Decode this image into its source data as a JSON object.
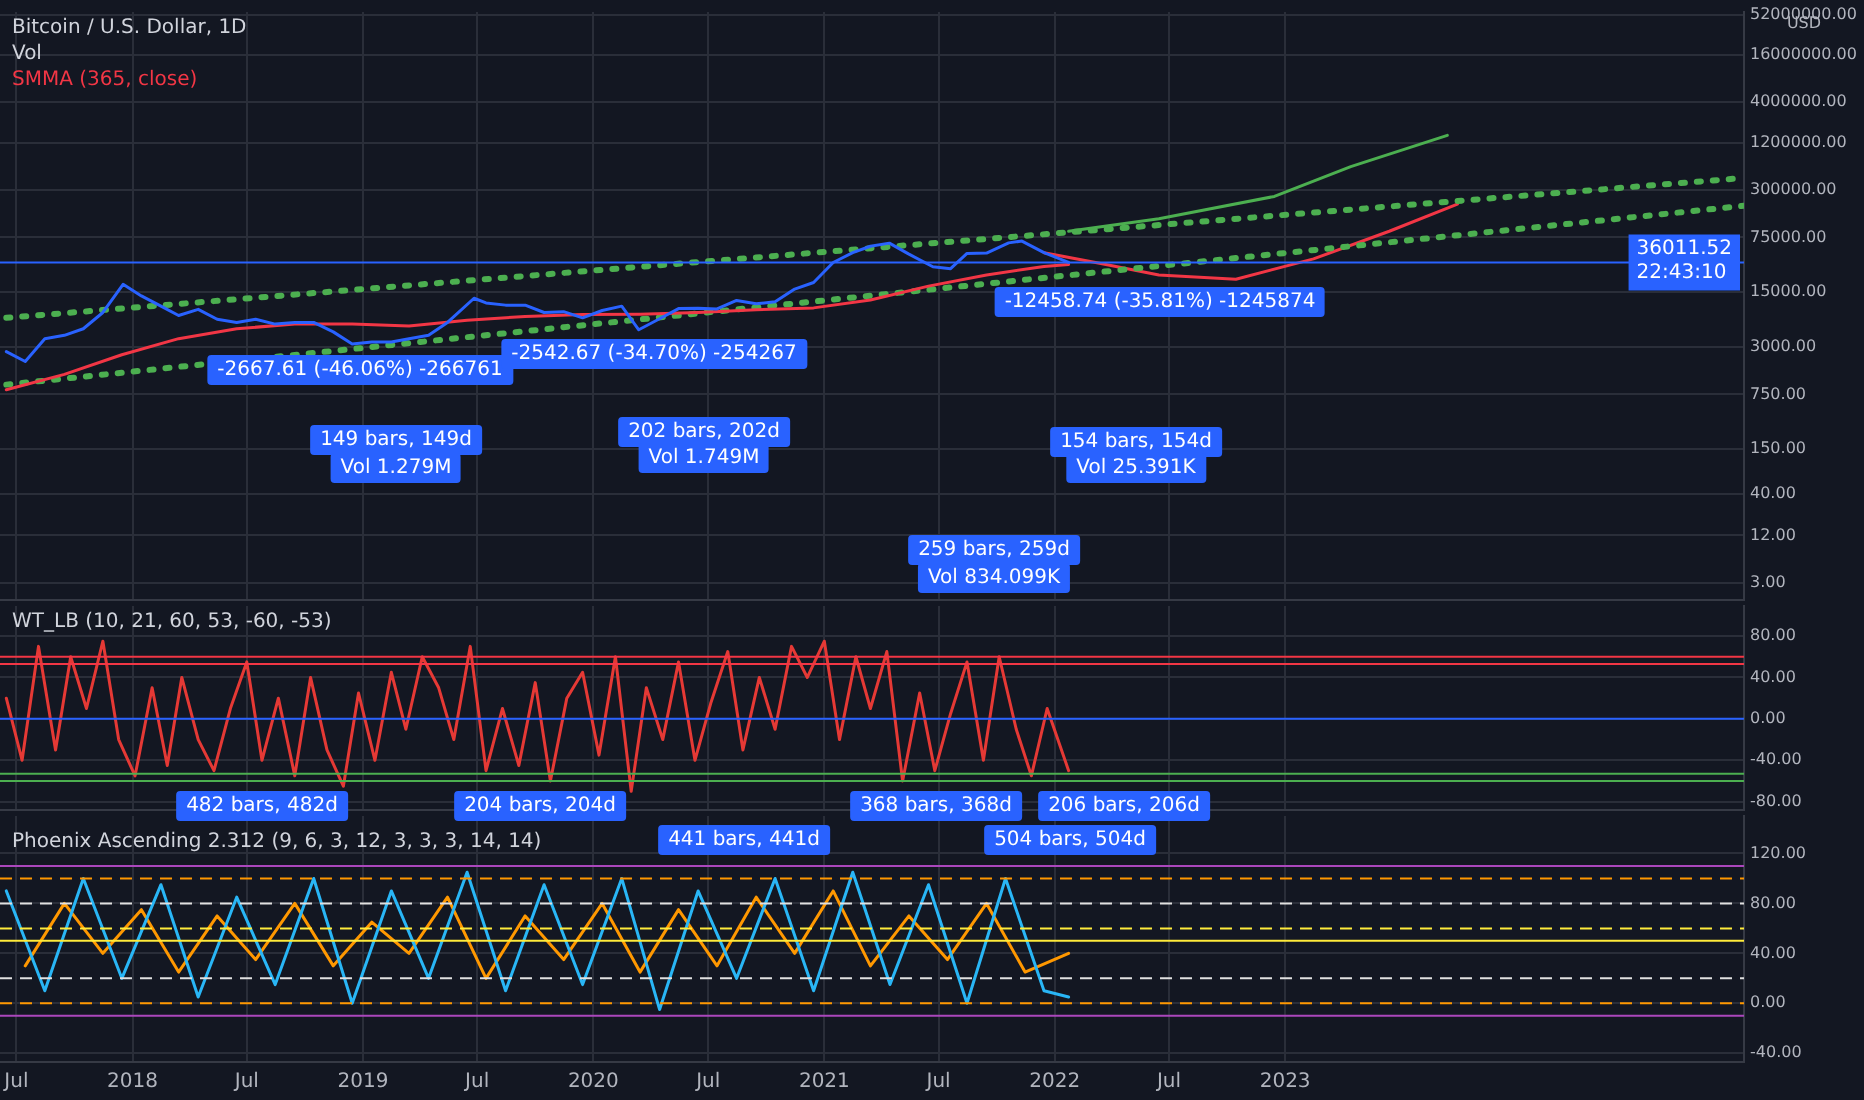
{
  "chart_data": [
    {
      "type": "line",
      "title": "Bitcoin / U.S. Dollar, 1D",
      "subtitle": "Vol",
      "ylabel": "USD",
      "log": true,
      "grid": true,
      "legend": false,
      "marker": "none",
      "tick_labels": "y",
      "xlim": [
        "2017-06-05",
        "2024-12-28"
      ],
      "xticks": [
        {
          "value": "2017-07-01",
          "label": null
        },
        {
          "value": "2018-01-01",
          "label": null
        },
        {
          "value": "2018-07-01",
          "label": null
        },
        {
          "value": "2019-01-01",
          "label": null
        },
        {
          "value": "2019-07-01",
          "label": null
        },
        {
          "value": "2020-01-01",
          "label": null
        },
        {
          "value": "2020-07-01",
          "label": null
        },
        {
          "value": "2021-01-01",
          "label": null
        },
        {
          "value": "2021-07-01",
          "label": null
        },
        {
          "value": "2022-01-01",
          "label": null
        },
        {
          "value": "2022-07-01",
          "label": null
        },
        {
          "value": "2023-01-01",
          "label": null
        }
      ],
      "ylim": [
        1.8,
        56000000
      ],
      "yticks": [
        {
          "value": 3,
          "label": "3.00"
        },
        {
          "value": 12,
          "label": "12.00"
        },
        {
          "value": 40,
          "label": "40.00"
        },
        {
          "value": 150,
          "label": "150.00"
        },
        {
          "value": 750,
          "label": "750.00"
        },
        {
          "value": 3000,
          "label": "3000.00"
        },
        {
          "value": 15000,
          "label": "15000.00"
        },
        {
          "value": 75000,
          "label": "75000.00"
        },
        {
          "value": 300000,
          "label": "300000.00"
        },
        {
          "value": 1200000,
          "label": "1200000.00"
        },
        {
          "value": 4000000,
          "label": "4000000.00"
        },
        {
          "value": 16000000,
          "label": "16000000.00"
        },
        {
          "value": 52000000,
          "label": "52000000.00"
        }
      ],
      "series": [
        {
          "color": "#2962ff",
          "x": [
            "2017-06-15",
            "2017-07-15",
            "2017-08-15",
            "2017-09-15",
            "2017-10-15",
            "2017-11-15",
            "2017-12-17",
            "2018-01-15",
            "2018-02-15",
            "2018-03-15",
            "2018-04-15",
            "2018-05-15",
            "2018-06-15",
            "2018-07-15",
            "2018-08-15",
            "2018-09-15",
            "2018-10-15",
            "2018-11-15",
            "2018-12-15",
            "2019-01-15",
            "2019-02-15",
            "2019-03-15",
            "2019-04-15",
            "2019-05-15",
            "2019-06-26",
            "2019-07-15",
            "2019-08-15",
            "2019-09-15",
            "2019-10-15",
            "2019-11-15",
            "2019-12-15",
            "2020-01-15",
            "2020-02-15",
            "2020-03-13",
            "2020-04-15",
            "2020-05-15",
            "2020-06-15",
            "2020-07-15",
            "2020-08-15",
            "2020-09-15",
            "2020-10-15",
            "2020-11-15",
            "2020-12-15",
            "2021-01-15",
            "2021-02-15",
            "2021-03-15",
            "2021-04-14",
            "2021-05-15",
            "2021-06-22",
            "2021-07-20",
            "2021-08-15",
            "2021-09-15",
            "2021-10-20",
            "2021-11-10",
            "2021-12-15",
            "2022-01-23"
          ],
          "values": [
            2630,
            1970,
            3850,
            4250,
            5150,
            8300,
            19000,
            13500,
            10000,
            7600,
            9100,
            6800,
            6200,
            6800,
            5900,
            6200,
            6200,
            4700,
            3300,
            3500,
            3500,
            3850,
            4250,
            6200,
            12600,
            11000,
            10300,
            10300,
            8300,
            8500,
            7100,
            8800,
            10000,
            5000,
            6900,
            9300,
            9400,
            9200,
            11800,
            10700,
            11400,
            16500,
            20000,
            36000,
            48000,
            58000,
            63500,
            46000,
            31800,
            30000,
            47000,
            47500,
            64000,
            67500,
            48000,
            36011.52
          ]
        },
        {
          "name": "SMMA (365, close)",
          "color": "#f23645",
          "x": [
            "2017-06-15",
            "2017-09-15",
            "2017-12-15",
            "2018-03-15",
            "2018-06-15",
            "2018-09-15",
            "2018-12-15",
            "2019-03-15",
            "2019-06-15",
            "2019-09-15",
            "2019-12-15",
            "2020-03-15",
            "2020-06-15",
            "2020-09-15",
            "2020-12-15",
            "2021-03-15",
            "2021-06-15",
            "2021-09-15",
            "2021-12-15",
            "2022-01-23"
          ],
          "values": [
            860,
            1350,
            2400,
            3850,
            5150,
            5900,
            5900,
            5600,
            6600,
            7400,
            7800,
            7900,
            8300,
            9000,
            9500,
            12000,
            18000,
            25000,
            32000,
            34000
          ]
        },
        {
          "color": "#4caf50",
          "line_style": "dotted",
          "x": [
            "2017-06-15",
            "2024-12-28"
          ],
          "values": [
            7100,
            430000
          ]
        },
        {
          "color": "#4caf50",
          "line_style": "dotted",
          "x": [
            "2017-06-15",
            "2024-12-28"
          ],
          "values": [
            1000,
            190000
          ]
        },
        {
          "color": "#4caf50",
          "x": [
            "2022-01-23",
            "2022-06-15",
            "2022-12-15",
            "2023-04-15",
            "2023-09-15"
          ],
          "values": [
            90000,
            130000,
            250000,
            600000,
            1500000
          ]
        },
        {
          "color": "#f23645",
          "x": [
            "2021-12-15",
            "2022-03-15",
            "2022-06-15",
            "2022-10-15",
            "2023-02-15",
            "2023-06-15",
            "2023-10-01"
          ],
          "values": [
            48000,
            35000,
            25000,
            22000,
            40000,
            90000,
            200000
          ]
        }
      ],
      "ref_lines": [
        {
          "axis": "y",
          "value": 36011.52,
          "label": "36011.52\n22:43:10",
          "color": "#2962ff"
        }
      ],
      "annotations": [
        "-2667.61 (-46.06%) -266761",
        "149 bars, 149d",
        "Vol 1.279M",
        "-2542.67 (-34.70%) -254267",
        "202 bars, 202d",
        "Vol 1.749M",
        "-12458.74 (-35.81%) -1245874",
        "154 bars, 154d",
        "Vol 25.391K",
        "259 bars, 259d",
        "Vol 834.099K"
      ]
    },
    {
      "type": "line",
      "title": "WT_LB (10, 21, 60, 53, -60, -53)",
      "grid": true,
      "legend": false,
      "marker": "none",
      "tick_labels": "y",
      "xlim": [
        "2017-06-05",
        "2024-12-28"
      ],
      "xticks": [
        {
          "value": "2017-07-01",
          "label": null
        },
        {
          "value": "2018-01-01",
          "label": null
        },
        {
          "value": "2018-07-01",
          "label": null
        },
        {
          "value": "2019-01-01",
          "label": null
        },
        {
          "value": "2019-07-01",
          "label": null
        },
        {
          "value": "2020-01-01",
          "label": null
        },
        {
          "value": "2020-07-01",
          "label": null
        },
        {
          "value": "2021-01-01",
          "label": null
        },
        {
          "value": "2021-07-01",
          "label": null
        },
        {
          "value": "2022-01-01",
          "label": null
        },
        {
          "value": "2022-07-01",
          "label": null
        },
        {
          "value": "2023-01-01",
          "label": null
        }
      ],
      "ylim": [
        -88,
        109
      ],
      "yticks": [
        {
          "value": -80,
          "label": "-80.00"
        },
        {
          "value": -40,
          "label": "-40.00"
        },
        {
          "value": 0,
          "label": "0.00"
        },
        {
          "value": 40,
          "label": "40.00"
        },
        {
          "value": 80,
          "label": "80.00"
        }
      ],
      "series": [
        {
          "color": "#e53935",
          "x": [
            "2017-06-15",
            "2017-07-10",
            "2017-08-05",
            "2017-09-01",
            "2017-09-25",
            "2017-10-20",
            "2017-11-15",
            "2017-12-10",
            "2018-01-05",
            "2018-02-01",
            "2018-02-25",
            "2018-03-20",
            "2018-04-15",
            "2018-05-10",
            "2018-06-05",
            "2018-07-01",
            "2018-07-25",
            "2018-08-20",
            "2018-09-15",
            "2018-10-10",
            "2018-11-05",
            "2018-12-01",
            "2018-12-25",
            "2019-01-20",
            "2019-02-15",
            "2019-03-10",
            "2019-04-05",
            "2019-05-01",
            "2019-05-25",
            "2019-06-20",
            "2019-07-15",
            "2019-08-10",
            "2019-09-05",
            "2019-10-01",
            "2019-10-25",
            "2019-11-20",
            "2019-12-15",
            "2020-01-10",
            "2020-02-05",
            "2020-03-01",
            "2020-03-25",
            "2020-04-20",
            "2020-05-15",
            "2020-06-10",
            "2020-07-05",
            "2020-08-01",
            "2020-08-25",
            "2020-09-20",
            "2020-10-15",
            "2020-11-10",
            "2020-12-05",
            "2021-01-01",
            "2021-01-25",
            "2021-02-20",
            "2021-03-15",
            "2021-04-10",
            "2021-05-05",
            "2021-06-01",
            "2021-06-25",
            "2021-07-20",
            "2021-08-15",
            "2021-09-10",
            "2021-10-05",
            "2021-11-01",
            "2021-11-25",
            "2021-12-20",
            "2022-01-23"
          ],
          "values": [
            20,
            -40,
            70,
            -30,
            60,
            10,
            75,
            -20,
            -55,
            30,
            -45,
            40,
            -20,
            -50,
            10,
            55,
            -40,
            20,
            -55,
            40,
            -30,
            -65,
            25,
            -40,
            45,
            -10,
            60,
            30,
            -20,
            70,
            -50,
            10,
            -45,
            35,
            -60,
            20,
            45,
            -35,
            60,
            -70,
            30,
            -20,
            55,
            -40,
            15,
            65,
            -30,
            40,
            -10,
            70,
            40,
            75,
            -20,
            60,
            10,
            65,
            -60,
            25,
            -50,
            5,
            55,
            -40,
            60,
            -10,
            -55,
            10,
            -50
          ]
        }
      ],
      "ref_lines": [
        {
          "axis": "y",
          "value": 60,
          "color": "#f23645"
        },
        {
          "axis": "y",
          "value": 53,
          "color": "#f23645"
        },
        {
          "axis": "y",
          "value": -60,
          "color": "#4caf50"
        },
        {
          "axis": "y",
          "value": -53,
          "color": "#4caf50"
        },
        {
          "axis": "y",
          "value": 0,
          "color": "#2962ff"
        }
      ],
      "annotations": [
        "482 bars, 482d",
        "204 bars, 204d",
        "368 bars, 368d",
        "206 bars, 206d"
      ]
    },
    {
      "type": "line",
      "title": "Phoenix Ascending 2.312 (9, 6, 3, 12, 3, 3, 3, 14, 14)",
      "grid": true,
      "legend": false,
      "marker": "none",
      "xlim": [
        "2017-06-05",
        "2024-12-28"
      ],
      "xticks": [
        {
          "value": "2017-07-01",
          "label": "Jul"
        },
        {
          "value": "2018-01-01",
          "label": "2018"
        },
        {
          "value": "2018-07-01",
          "label": "Jul"
        },
        {
          "value": "2019-01-01",
          "label": "2019"
        },
        {
          "value": "2019-07-01",
          "label": "Jul"
        },
        {
          "value": "2020-01-01",
          "label": "2020"
        },
        {
          "value": "2020-07-01",
          "label": "Jul"
        },
        {
          "value": "2021-01-01",
          "label": "2021"
        },
        {
          "value": "2021-07-01",
          "label": "Jul"
        },
        {
          "value": "2022-01-01",
          "label": "2022"
        },
        {
          "value": "2022-07-01",
          "label": "Jul"
        },
        {
          "value": "2023-01-01",
          "label": "2023"
        }
      ],
      "ylim": [
        -47,
        150
      ],
      "yticks": [
        {
          "value": -40,
          "label": "-40.00"
        },
        {
          "value": 0,
          "label": "0.00"
        },
        {
          "value": 40,
          "label": "40.00"
        },
        {
          "value": 80,
          "label": "80.00"
        },
        {
          "value": 120,
          "label": "120.00"
        }
      ],
      "series": [
        {
          "color": "#29b6f6",
          "x": [
            "2017-06-15",
            "2017-08-15",
            "2017-10-15",
            "2017-12-15",
            "2018-02-15",
            "2018-04-15",
            "2018-06-15",
            "2018-08-15",
            "2018-10-15",
            "2018-12-15",
            "2019-02-15",
            "2019-04-15",
            "2019-06-15",
            "2019-08-15",
            "2019-10-15",
            "2019-12-15",
            "2020-02-15",
            "2020-04-15",
            "2020-06-15",
            "2020-08-15",
            "2020-10-15",
            "2020-12-15",
            "2021-02-15",
            "2021-04-15",
            "2021-06-15",
            "2021-08-15",
            "2021-10-15",
            "2021-12-15",
            "2022-01-23"
          ],
          "values": [
            90,
            10,
            100,
            20,
            95,
            5,
            85,
            15,
            100,
            0,
            90,
            20,
            105,
            10,
            95,
            15,
            100,
            -5,
            90,
            20,
            100,
            10,
            105,
            15,
            95,
            0,
            100,
            10,
            5
          ]
        },
        {
          "color": "#ff9800",
          "x": [
            "2017-07-15",
            "2017-09-15",
            "2017-11-15",
            "2018-01-15",
            "2018-03-15",
            "2018-05-15",
            "2018-07-15",
            "2018-09-15",
            "2018-11-15",
            "2019-01-15",
            "2019-03-15",
            "2019-05-15",
            "2019-07-15",
            "2019-09-15",
            "2019-11-15",
            "2020-01-15",
            "2020-03-15",
            "2020-05-15",
            "2020-07-15",
            "2020-09-15",
            "2020-11-15",
            "2021-01-15",
            "2021-03-15",
            "2021-05-15",
            "2021-07-15",
            "2021-09-15",
            "2021-11-15",
            "2022-01-23"
          ],
          "values": [
            30,
            80,
            40,
            75,
            25,
            70,
            35,
            80,
            30,
            65,
            40,
            85,
            20,
            70,
            35,
            80,
            25,
            75,
            30,
            85,
            40,
            90,
            30,
            70,
            35,
            80,
            25,
            40
          ]
        }
      ],
      "ref_lines": [
        {
          "axis": "y",
          "value": 110,
          "color": "#ab47bc"
        },
        {
          "axis": "y",
          "value": 100,
          "color": "#ff9800",
          "line_style": "dashed"
        },
        {
          "axis": "y",
          "value": 80,
          "color": "#e0e0e0",
          "line_style": "dashed"
        },
        {
          "axis": "y",
          "value": 60,
          "color": "#ffeb3b",
          "line_style": "dashed"
        },
        {
          "axis": "y",
          "value": 50,
          "color": "#ffeb3b"
        },
        {
          "axis": "y",
          "value": 20,
          "color": "#e0e0e0",
          "line_style": "dashed"
        },
        {
          "axis": "y",
          "value": 0,
          "color": "#ff9800",
          "line_style": "dashed"
        },
        {
          "axis": "y",
          "value": -10,
          "color": "#ab47bc"
        }
      ],
      "annotations": [
        "441 bars, 441d",
        "504 bars, 504d"
      ]
    }
  ]
}
